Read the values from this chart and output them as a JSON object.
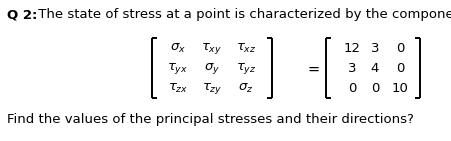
{
  "title_bold": "Q 2:",
  "title_rest": " The state of stress at a point is characterized by the components:",
  "subtitle": "Find the values of the principal stresses and their directions?",
  "matrix_right": [
    [
      "12",
      "3",
      "0"
    ],
    [
      "3",
      "4",
      "0"
    ],
    [
      "0",
      "0",
      "10"
    ]
  ],
  "bg_color": "#ffffff",
  "text_color": "#000000",
  "fontsize_title": 9.5,
  "fontsize_matrix": 9.5,
  "fontsize_subtitle": 9.5
}
